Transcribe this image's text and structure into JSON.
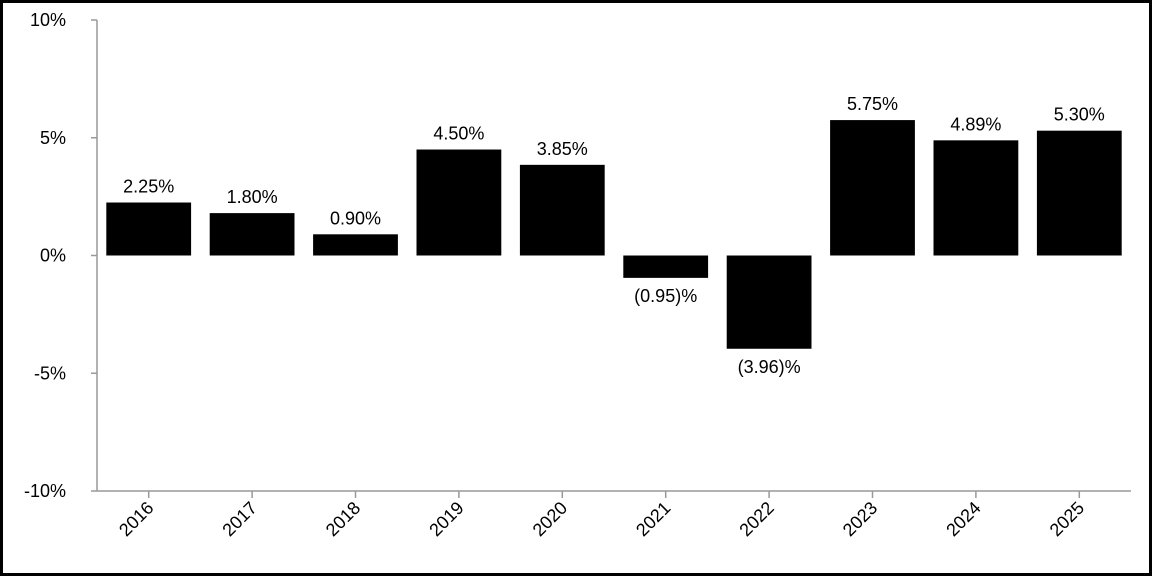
{
  "chart_data": {
    "type": "bar",
    "categories": [
      "2016",
      "2017",
      "2018",
      "2019",
      "2020",
      "2021",
      "2022",
      "2023",
      "2024",
      "2025"
    ],
    "values": [
      2.25,
      1.8,
      0.9,
      4.5,
      3.85,
      -0.95,
      -3.96,
      5.75,
      4.89,
      5.3
    ],
    "value_labels": [
      "2.25%",
      "1.80%",
      "0.90%",
      "4.50%",
      "3.85%",
      "(0.95)%",
      "(3.96)%",
      "5.75%",
      "4.89%",
      "5.30%"
    ],
    "color": "#000000",
    "ylim": [
      -10,
      10
    ],
    "yticks": [
      {
        "value": -10,
        "label": "-10%"
      },
      {
        "value": -5,
        "label": "-5%"
      },
      {
        "value": 0,
        "label": "0%"
      },
      {
        "value": 5,
        "label": "5%"
      },
      {
        "value": 10,
        "label": "10%"
      }
    ],
    "grid": false
  }
}
